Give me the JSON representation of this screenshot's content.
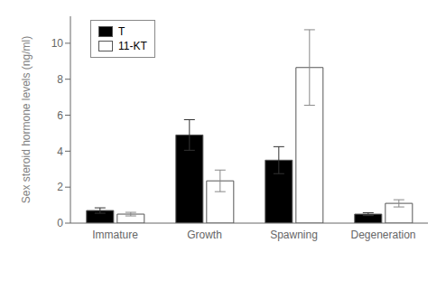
{
  "chart_data": {
    "type": "bar",
    "ylabel": "Sex steroid hormone levels (ng/ml)",
    "categories": [
      "Immature",
      "Growth",
      "Spawning",
      "Degeneration"
    ],
    "series": [
      {
        "name": "T",
        "color": "#000000",
        "values": [
          0.7,
          4.9,
          3.5,
          0.5
        ],
        "errors": [
          0.15,
          0.85,
          0.75,
          0.08
        ]
      },
      {
        "name": "11-KT",
        "color": "#ffffff",
        "values": [
          0.5,
          2.35,
          8.65,
          1.1
        ],
        "errors": [
          0.1,
          0.6,
          2.1,
          0.2
        ]
      }
    ],
    "ylim": [
      0,
      11.5
    ],
    "yticks": [
      0,
      2,
      4,
      6,
      8,
      10
    ],
    "grid": false,
    "legend": "upper left"
  }
}
